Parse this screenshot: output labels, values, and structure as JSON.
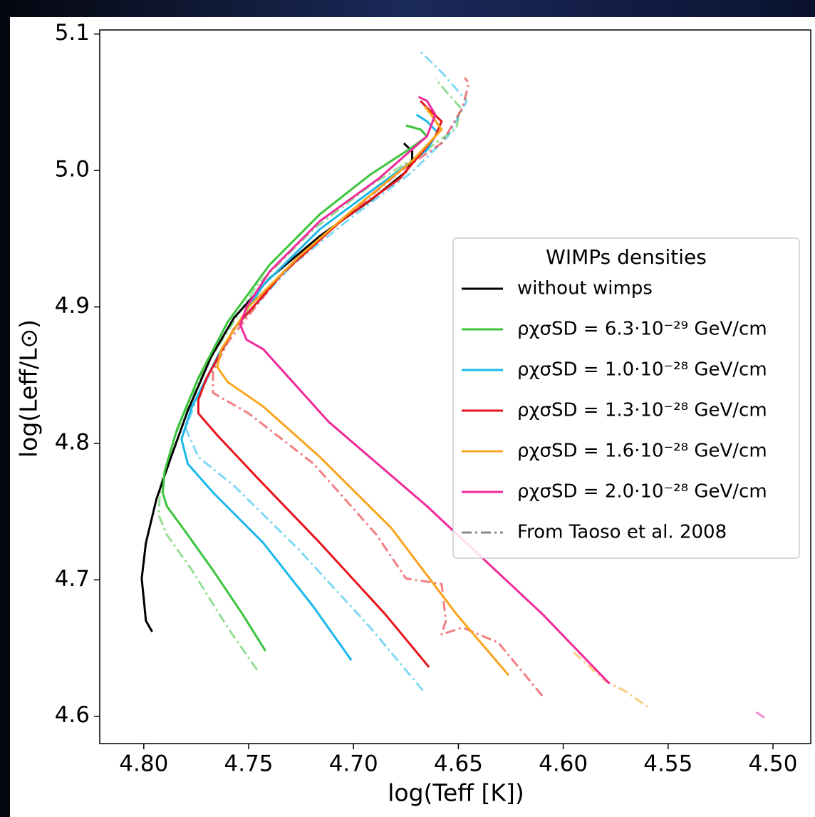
{
  "chart_data": {
    "type": "line",
    "xlabel": "log(Teff [K])",
    "ylabel": "log(Leff/L⊙)",
    "xlim": [
      4.821,
      4.482
    ],
    "ylim": [
      4.58,
      5.103
    ],
    "xticks": [
      {
        "value": 4.8,
        "label": "4.80"
      },
      {
        "value": 4.75,
        "label": "4.75"
      },
      {
        "value": 4.7,
        "label": "4.70"
      },
      {
        "value": 4.65,
        "label": "4.65"
      },
      {
        "value": 4.6,
        "label": "4.60"
      },
      {
        "value": 4.55,
        "label": "4.55"
      },
      {
        "value": 4.5,
        "label": "4.50"
      }
    ],
    "yticks": [
      4.6,
      4.7,
      4.8,
      4.9,
      {
        "value": 5,
        "label": "5.0"
      },
      5.1
    ],
    "legend_title": "WIMPs densities",
    "legend_position": "center right",
    "series": [
      {
        "name": "without wimps",
        "color": "#000000",
        "x": [
          4.796,
          4.799,
          4.8,
          4.801,
          4.799,
          4.794,
          4.787,
          4.779,
          4.768,
          4.757,
          4.74,
          4.716,
          4.692,
          4.675,
          4.672,
          4.672,
          4.676
        ],
        "values": [
          4.662,
          4.67,
          4.686,
          4.701,
          4.727,
          4.759,
          4.79,
          4.824,
          4.863,
          4.892,
          4.921,
          4.952,
          4.978,
          4.999,
          5.007,
          5.014,
          5.02
        ]
      },
      {
        "name": "ρχσSD = 6.3·10⁻²⁹ GeV/cm",
        "color": "#3cc43c",
        "x": [
          4.742,
          4.753,
          4.767,
          4.78,
          4.789,
          4.791,
          4.79,
          4.784,
          4.774,
          4.76,
          4.74,
          4.716,
          4.692,
          4.672,
          4.665,
          4.668,
          4.675
        ],
        "values": [
          4.648,
          4.675,
          4.707,
          4.735,
          4.754,
          4.764,
          4.78,
          4.811,
          4.848,
          4.889,
          4.931,
          4.968,
          4.997,
          5.017,
          5.025,
          5.03,
          5.033
        ]
      },
      {
        "name": "ρχσSD = 1.0·10⁻²⁸ GeV/cm",
        "color": "#1ab8ec",
        "x": [
          4.701,
          4.719,
          4.743,
          4.767,
          4.779,
          4.782,
          4.777,
          4.763,
          4.743,
          4.716,
          4.688,
          4.665,
          4.66,
          4.665,
          4.67
        ],
        "values": [
          4.641,
          4.68,
          4.727,
          4.764,
          4.785,
          4.803,
          4.827,
          4.869,
          4.916,
          4.957,
          4.989,
          5.015,
          5.028,
          5.036,
          5.041
        ]
      },
      {
        "name": "ρχσSD = 1.3·10⁻²⁸ GeV/cm",
        "color": "#e8141c",
        "x": [
          4.664,
          4.685,
          4.716,
          4.746,
          4.765,
          4.774,
          4.774,
          4.77,
          4.757,
          4.733,
          4.706,
          4.678,
          4.661,
          4.658,
          4.665,
          4.668
        ],
        "values": [
          4.636,
          4.675,
          4.727,
          4.775,
          4.806,
          4.822,
          4.832,
          4.848,
          4.884,
          4.926,
          4.963,
          4.994,
          5.025,
          5.036,
          5.046,
          5.051
        ]
      },
      {
        "name": "ρχσSD = 1.6·10⁻²⁸ GeV/cm",
        "color": "#f9a41c",
        "x": [
          4.626,
          4.651,
          4.682,
          4.716,
          4.743,
          4.76,
          4.765,
          4.763,
          4.75,
          4.726,
          4.699,
          4.672,
          4.658,
          4.663,
          4.666
        ],
        "values": [
          4.63,
          4.675,
          4.738,
          4.79,
          4.827,
          4.845,
          4.856,
          4.869,
          4.9,
          4.937,
          4.973,
          5.007,
          5.03,
          5.041,
          5.047
        ]
      },
      {
        "name": "ρχσSD = 2.0·10⁻²⁸ GeV/cm",
        "color": "#f0289a",
        "x": [
          4.578,
          4.61,
          4.665,
          4.712,
          4.743,
          4.751,
          4.754,
          4.751,
          4.74,
          4.716,
          4.688,
          4.665,
          4.661,
          4.665,
          4.669
        ],
        "values": [
          4.624,
          4.675,
          4.754,
          4.816,
          4.869,
          4.876,
          4.887,
          4.9,
          4.926,
          4.963,
          4.994,
          5.025,
          5.041,
          5.051,
          5.054
        ]
      }
    ],
    "reference_label": "From Taoso et al. 2008",
    "reference_color": "#888888",
    "reference_series": [
      {
        "color": "#3cc43c",
        "x": [
          4.746,
          4.76,
          4.777,
          4.789,
          4.793,
          4.792,
          4.785,
          4.77,
          4.746,
          4.719,
          4.692,
          4.668,
          4.651,
          4.649,
          4.661
        ],
        "values": [
          4.634,
          4.665,
          4.707,
          4.733,
          4.748,
          4.769,
          4.806,
          4.858,
          4.916,
          4.957,
          4.989,
          5.012,
          5.031,
          5.046,
          5.067
        ]
      },
      {
        "color": "#1ab8ec",
        "x": [
          4.667,
          4.692,
          4.726,
          4.757,
          4.774,
          4.78,
          4.775,
          4.757,
          4.729,
          4.699,
          4.672,
          4.655,
          4.646,
          4.658,
          4.668
        ],
        "values": [
          4.619,
          4.665,
          4.722,
          4.769,
          4.79,
          4.811,
          4.832,
          4.884,
          4.931,
          4.968,
          4.999,
          5.025,
          5.051,
          5.072,
          5.087
        ]
      },
      {
        "color": "#e8141c",
        "x": [
          4.61,
          4.631,
          4.648,
          4.658,
          4.656,
          4.658,
          4.675,
          4.689,
          4.719,
          4.75,
          4.767,
          4.767,
          4.76,
          4.736,
          4.706,
          4.678,
          4.658,
          4.648,
          4.645,
          4.647
        ],
        "values": [
          4.615,
          4.654,
          4.665,
          4.66,
          4.67,
          4.697,
          4.701,
          4.733,
          4.785,
          4.822,
          4.837,
          4.853,
          4.874,
          4.921,
          4.963,
          4.999,
          5.02,
          5.046,
          5.064,
          5.068
        ]
      },
      {
        "color": "#f9a41c",
        "x": [
          4.595,
          4.58,
          4.57,
          4.559
        ],
        "values": [
          4.647,
          4.626,
          4.618,
          4.606
        ]
      },
      {
        "color": "#f0289a",
        "x": [
          4.508,
          4.503
        ],
        "values": [
          4.603,
          4.598
        ]
      }
    ]
  }
}
